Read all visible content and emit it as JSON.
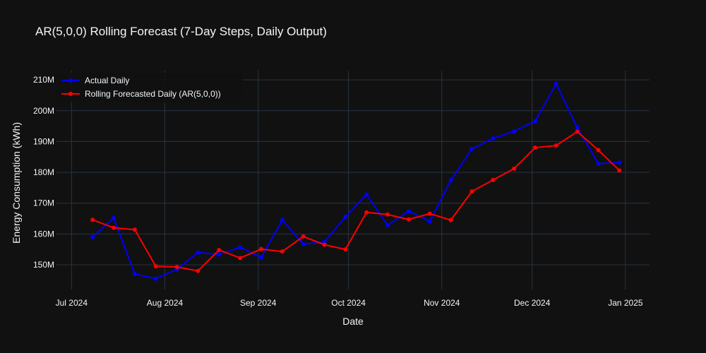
{
  "chart_data": {
    "type": "line",
    "title": "AR(5,0,0) Rolling Forecast (7-Day Steps, Daily Output)",
    "xlabel": "Date",
    "ylabel": "Energy Consumption (kWh)",
    "x_range": [
      "2024-06-26",
      "2025-01-09"
    ],
    "ylim": [
      142000000,
      213000000
    ],
    "x_ticks": [
      {
        "date": "2024-07-01",
        "label": "Jul 2024"
      },
      {
        "date": "2024-08-01",
        "label": "Aug 2024"
      },
      {
        "date": "2024-09-01",
        "label": "Sep 2024"
      },
      {
        "date": "2024-10-01",
        "label": "Oct 2024"
      },
      {
        "date": "2024-11-01",
        "label": "Nov 2024"
      },
      {
        "date": "2024-12-01",
        "label": "Dec 2024"
      },
      {
        "date": "2025-01-01",
        "label": "Jan 2025"
      }
    ],
    "y_ticks": [
      {
        "value": 150000000,
        "label": "150M"
      },
      {
        "value": 160000000,
        "label": "160M"
      },
      {
        "value": 170000000,
        "label": "170M"
      },
      {
        "value": 180000000,
        "label": "180M"
      },
      {
        "value": 190000000,
        "label": "190M"
      },
      {
        "value": 200000000,
        "label": "200M"
      },
      {
        "value": 210000000,
        "label": "210M"
      }
    ],
    "grid": true,
    "legend_position": "top-left",
    "x": [
      "2024-07-08",
      "2024-07-15",
      "2024-07-22",
      "2024-07-29",
      "2024-08-05",
      "2024-08-12",
      "2024-08-19",
      "2024-08-26",
      "2024-09-02",
      "2024-09-09",
      "2024-09-16",
      "2024-09-23",
      "2024-09-30",
      "2024-10-07",
      "2024-10-14",
      "2024-10-21",
      "2024-10-28",
      "2024-11-04",
      "2024-11-11",
      "2024-11-18",
      "2024-11-25",
      "2024-12-02",
      "2024-12-09",
      "2024-12-16",
      "2024-12-23",
      "2024-12-30"
    ],
    "series": [
      {
        "name": "Actual Daily",
        "color": "#0000ff",
        "values": [
          159000000,
          165200000,
          147000000,
          145500000,
          148500000,
          154000000,
          153300000,
          155700000,
          152400000,
          164500000,
          156700000,
          157400000,
          165600000,
          172800000,
          162800000,
          167400000,
          164100000,
          177400000,
          187600000,
          191000000,
          193300000,
          196600000,
          208700000,
          194500000,
          182800000,
          183200000
        ]
      },
      {
        "name": "Rolling Forecasted Daily (AR(5,0,0))",
        "color": "#ff0000",
        "values": [
          164600000,
          162000000,
          161400000,
          149500000,
          149300000,
          148000000,
          154800000,
          152200000,
          155100000,
          154300000,
          159200000,
          156500000,
          155000000,
          167000000,
          166300000,
          164700000,
          166600000,
          164500000,
          173800000,
          177500000,
          181200000,
          188000000,
          188700000,
          193200000,
          187200000,
          180600000
        ]
      }
    ]
  }
}
